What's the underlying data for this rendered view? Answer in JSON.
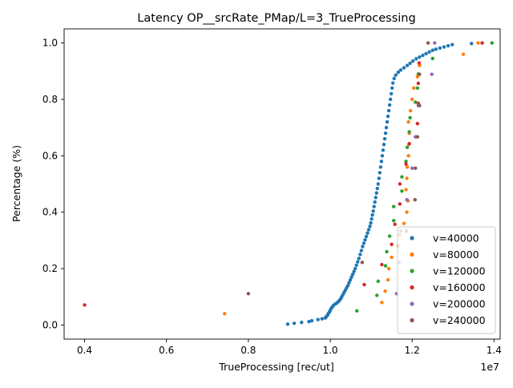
{
  "chart_data": {
    "type": "scatter",
    "title": "Latency OP__srcRate_PMap/L=3_TrueProcessing",
    "xlabel": "TrueProcessing [rec/ut]",
    "ylabel": "Percentage (%)",
    "x_offset_label": "1e7",
    "xlim": [
      0.35,
      1.415
    ],
    "ylim": [
      -0.05,
      1.05
    ],
    "x_ticks": [
      0.4,
      0.6,
      0.8,
      1.0,
      1.2,
      1.4
    ],
    "y_ticks": [
      0.0,
      0.2,
      0.4,
      0.6,
      0.8,
      1.0
    ],
    "legend_position": "lower-right",
    "series": [
      {
        "name": "v=40000",
        "color": "#1f77b4",
        "points": [
          [
            0.896,
            0.003
          ],
          [
            0.912,
            0.006
          ],
          [
            0.93,
            0.009
          ],
          [
            0.948,
            0.012
          ],
          [
            0.955,
            0.015
          ],
          [
            0.97,
            0.019
          ],
          [
            0.98,
            0.022
          ],
          [
            0.988,
            0.025
          ],
          [
            0.99,
            0.029
          ],
          [
            0.993,
            0.034
          ],
          [
            0.995,
            0.04
          ],
          [
            0.998,
            0.046
          ],
          [
            1.0,
            0.052
          ],
          [
            1.002,
            0.058
          ],
          [
            1.005,
            0.064
          ],
          [
            1.008,
            0.07
          ],
          [
            1.012,
            0.074
          ],
          [
            1.016,
            0.078
          ],
          [
            1.02,
            0.083
          ],
          [
            1.023,
            0.088
          ],
          [
            1.026,
            0.094
          ],
          [
            1.028,
            0.1
          ],
          [
            1.031,
            0.108
          ],
          [
            1.034,
            0.116
          ],
          [
            1.037,
            0.124
          ],
          [
            1.04,
            0.132
          ],
          [
            1.043,
            0.14
          ],
          [
            1.046,
            0.15
          ],
          [
            1.049,
            0.16
          ],
          [
            1.052,
            0.17
          ],
          [
            1.055,
            0.18
          ],
          [
            1.058,
            0.19
          ],
          [
            1.061,
            0.2
          ],
          [
            1.064,
            0.212
          ],
          [
            1.067,
            0.224
          ],
          [
            1.07,
            0.236
          ],
          [
            1.073,
            0.25
          ],
          [
            1.076,
            0.264
          ],
          [
            1.079,
            0.278
          ],
          [
            1.082,
            0.29
          ],
          [
            1.085,
            0.302
          ],
          [
            1.088,
            0.314
          ],
          [
            1.091,
            0.326
          ],
          [
            1.094,
            0.338
          ],
          [
            1.097,
            0.35
          ],
          [
            1.099,
            0.362
          ],
          [
            1.101,
            0.376
          ],
          [
            1.103,
            0.39
          ],
          [
            1.105,
            0.404
          ],
          [
            1.107,
            0.42
          ],
          [
            1.109,
            0.436
          ],
          [
            1.111,
            0.452
          ],
          [
            1.113,
            0.468
          ],
          [
            1.115,
            0.484
          ],
          [
            1.117,
            0.5
          ],
          [
            1.119,
            0.52
          ],
          [
            1.121,
            0.54
          ],
          [
            1.123,
            0.56
          ],
          [
            1.125,
            0.58
          ],
          [
            1.127,
            0.6
          ],
          [
            1.129,
            0.62
          ],
          [
            1.131,
            0.64
          ],
          [
            1.133,
            0.66
          ],
          [
            1.135,
            0.68
          ],
          [
            1.137,
            0.7
          ],
          [
            1.139,
            0.72
          ],
          [
            1.141,
            0.74
          ],
          [
            1.143,
            0.76
          ],
          [
            1.145,
            0.78
          ],
          [
            1.147,
            0.8
          ],
          [
            1.149,
            0.82
          ],
          [
            1.151,
            0.84
          ],
          [
            1.153,
            0.858
          ],
          [
            1.156,
            0.874
          ],
          [
            1.16,
            0.886
          ],
          [
            1.166,
            0.896
          ],
          [
            1.172,
            0.904
          ],
          [
            1.18,
            0.912
          ],
          [
            1.188,
            0.92
          ],
          [
            1.195,
            0.928
          ],
          [
            1.202,
            0.936
          ],
          [
            1.21,
            0.944
          ],
          [
            1.218,
            0.95
          ],
          [
            1.226,
            0.956
          ],
          [
            1.234,
            0.962
          ],
          [
            1.242,
            0.968
          ],
          [
            1.25,
            0.974
          ],
          [
            1.258,
            0.978
          ],
          [
            1.268,
            0.982
          ],
          [
            1.278,
            0.986
          ],
          [
            1.288,
            0.99
          ],
          [
            1.298,
            0.994
          ],
          [
            1.345,
            0.998
          ]
        ]
      },
      {
        "name": "v=80000",
        "color": "#ff7f0e",
        "points": [
          [
            0.742,
            0.04
          ],
          [
            1.126,
            0.08
          ],
          [
            1.134,
            0.12
          ],
          [
            1.141,
            0.16
          ],
          [
            1.143,
            0.2
          ],
          [
            1.15,
            0.24
          ],
          [
            1.166,
            0.28
          ],
          [
            1.169,
            0.32
          ],
          [
            1.18,
            0.36
          ],
          [
            1.187,
            0.4
          ],
          [
            1.19,
            0.44
          ],
          [
            1.185,
            0.48
          ],
          [
            1.187,
            0.52
          ],
          [
            1.188,
            0.56
          ],
          [
            1.191,
            0.6
          ],
          [
            1.192,
            0.64
          ],
          [
            1.193,
            0.68
          ],
          [
            1.191,
            0.72
          ],
          [
            1.196,
            0.76
          ],
          [
            1.2,
            0.8
          ],
          [
            1.204,
            0.84
          ],
          [
            1.213,
            0.88
          ],
          [
            1.218,
            0.92
          ],
          [
            1.325,
            0.96
          ],
          [
            1.361,
            1.0
          ]
        ]
      },
      {
        "name": "v=120000",
        "color": "#2ca02c",
        "points": [
          [
            1.065,
            0.05
          ],
          [
            1.114,
            0.105
          ],
          [
            1.117,
            0.155
          ],
          [
            1.135,
            0.21
          ],
          [
            1.138,
            0.26
          ],
          [
            1.145,
            0.315
          ],
          [
            1.155,
            0.37
          ],
          [
            1.155,
            0.42
          ],
          [
            1.175,
            0.475
          ],
          [
            1.175,
            0.525
          ],
          [
            1.185,
            0.58
          ],
          [
            1.188,
            0.63
          ],
          [
            1.193,
            0.685
          ],
          [
            1.195,
            0.735
          ],
          [
            1.208,
            0.79
          ],
          [
            1.213,
            0.84
          ],
          [
            1.215,
            0.89
          ],
          [
            1.25,
            0.945
          ],
          [
            1.395,
            1.0
          ]
        ]
      },
      {
        "name": "v=160000",
        "color": "#d62728",
        "points": [
          [
            0.4,
            0.071
          ],
          [
            1.083,
            0.143
          ],
          [
            1.126,
            0.214
          ],
          [
            1.15,
            0.286
          ],
          [
            1.158,
            0.357
          ],
          [
            1.17,
            0.429
          ],
          [
            1.17,
            0.5
          ],
          [
            1.185,
            0.571
          ],
          [
            1.193,
            0.643
          ],
          [
            1.213,
            0.714
          ],
          [
            1.215,
            0.786
          ],
          [
            1.215,
            0.857
          ],
          [
            1.217,
            0.929
          ],
          [
            1.371,
            1.0
          ]
        ]
      },
      {
        "name": "v=200000",
        "color": "#9467bd",
        "points": [
          [
            1.162,
            0.111
          ],
          [
            1.168,
            0.222
          ],
          [
            1.172,
            0.333
          ],
          [
            1.187,
            0.444
          ],
          [
            1.2,
            0.556
          ],
          [
            1.208,
            0.667
          ],
          [
            1.215,
            0.778
          ],
          [
            1.248,
            0.889
          ],
          [
            1.255,
            1.0
          ]
        ]
      },
      {
        "name": "v=240000",
        "color": "#8c564b",
        "points": [
          [
            0.8,
            0.111
          ],
          [
            1.078,
            0.222
          ],
          [
            1.186,
            0.333
          ],
          [
            1.207,
            0.444
          ],
          [
            1.208,
            0.556
          ],
          [
            1.213,
            0.667
          ],
          [
            1.218,
            0.778
          ],
          [
            1.218,
            0.889
          ],
          [
            1.239,
            1.0
          ]
        ]
      }
    ]
  }
}
